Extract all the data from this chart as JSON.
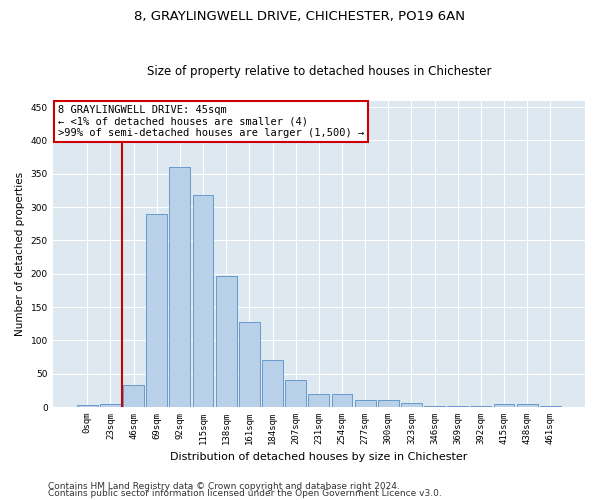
{
  "title": "8, GRAYLINGWELL DRIVE, CHICHESTER, PO19 6AN",
  "subtitle": "Size of property relative to detached houses in Chichester",
  "xlabel": "Distribution of detached houses by size in Chichester",
  "ylabel": "Number of detached properties",
  "bar_labels": [
    "0sqm",
    "23sqm",
    "46sqm",
    "69sqm",
    "92sqm",
    "115sqm",
    "138sqm",
    "161sqm",
    "184sqm",
    "207sqm",
    "231sqm",
    "254sqm",
    "277sqm",
    "300sqm",
    "323sqm",
    "346sqm",
    "369sqm",
    "392sqm",
    "415sqm",
    "438sqm",
    "461sqm"
  ],
  "bar_values": [
    3,
    5,
    33,
    289,
    360,
    318,
    197,
    127,
    70,
    40,
    19,
    19,
    10,
    10,
    6,
    2,
    2,
    2,
    5,
    5,
    1
  ],
  "bar_color": "#b8d0e8",
  "bar_edge_color": "#6699cc",
  "background_color": "#dde8f0",
  "grid_color": "#ffffff",
  "vline_color": "#cc0000",
  "vline_x": 1.5,
  "annotation_line1": "8 GRAYLINGWELL DRIVE: 45sqm",
  "annotation_line2": "← <1% of detached houses are smaller (4)",
  "annotation_line3": ">99% of semi-detached houses are larger (1,500) →",
  "annotation_box_color": "#cc0000",
  "ylim": [
    0,
    460
  ],
  "yticks": [
    0,
    50,
    100,
    150,
    200,
    250,
    300,
    350,
    400,
    450
  ],
  "footer1": "Contains HM Land Registry data © Crown copyright and database right 2024.",
  "footer2": "Contains public sector information licensed under the Open Government Licence v3.0.",
  "title_fontsize": 9.5,
  "subtitle_fontsize": 8.5,
  "xlabel_fontsize": 8,
  "ylabel_fontsize": 7.5,
  "tick_fontsize": 6.5,
  "annotation_fontsize": 7.5,
  "footer_fontsize": 6.5
}
